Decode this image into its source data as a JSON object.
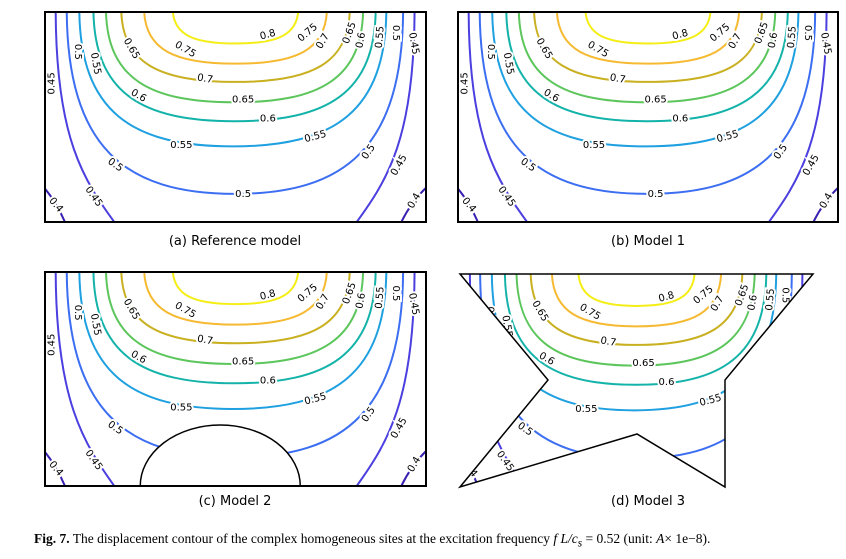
{
  "chart_data": [
    {
      "type": "contour",
      "caption": "(a) Reference model",
      "domain_shape": "rectangle"
    },
    {
      "type": "contour",
      "caption": "(b) Model 1",
      "domain_shape": "rectangle"
    },
    {
      "type": "contour",
      "caption": "(c) Model 2",
      "domain_shape": "rectangle with semicircular hill at bottom"
    },
    {
      "type": "contour",
      "caption": "(d) Model 3",
      "domain_shape": "irregular polygon"
    }
  ],
  "contour_levels": [
    "0.4",
    "0.45",
    "0.5",
    "0.55",
    "0.6",
    "0.65",
    "0.7",
    "0.75",
    "0.8"
  ],
  "level_colors": {
    "0.4": "#3a1fb0",
    "0.45": "#4b3fe0",
    "0.5": "#3c6ef2",
    "0.55": "#1fa0e0",
    "0.6": "#14b3aa",
    "0.65": "#5cc65c",
    "0.7": "#c9b020",
    "0.75": "#f6ba32",
    "0.8": "#f4ee16"
  },
  "contour_labels": [
    "0.8",
    "0.75",
    "0.75",
    "0.7",
    "0.7",
    "0.65",
    "0.65",
    "0.65",
    "0.6",
    "0.6",
    "0.6",
    "0.55",
    "0.55",
    "0.55",
    "0.55",
    "0.5",
    "0.5",
    "0.5",
    "0.5",
    "0.5",
    "0.45",
    "0.45",
    "0.45",
    "0.45",
    "0.4",
    "0.4"
  ],
  "figure_caption": {
    "label": "Fig. 7.",
    "text": "The displacement contour of the complex homogeneous sites at the excitation frequency",
    "formula_lhs": "f L/c",
    "formula_sub": "s",
    "formula_rhs": "= 0.52 (unit:",
    "unit_var": "A",
    "unit_rest": "× 1e−8)."
  }
}
